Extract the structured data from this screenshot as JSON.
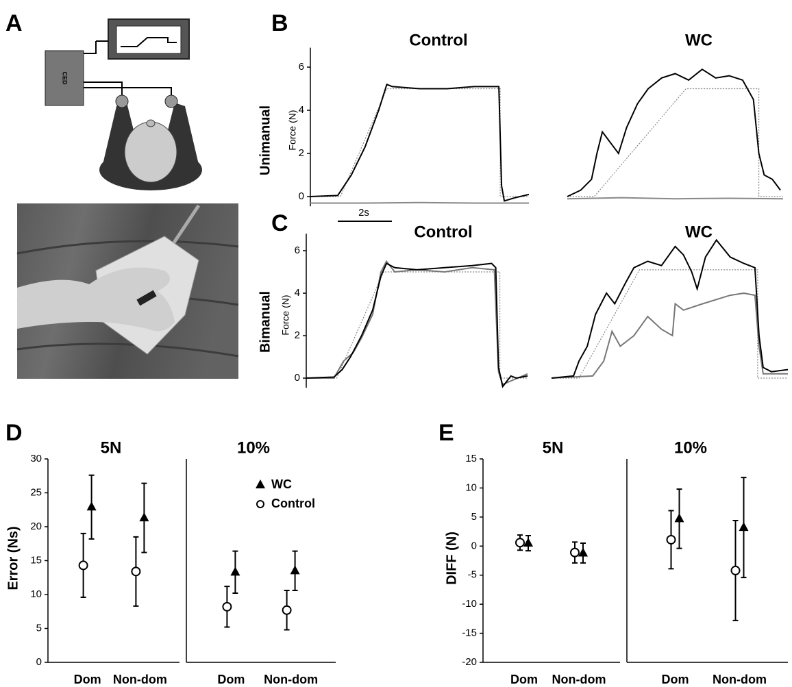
{
  "figure": {
    "panel_labels": [
      "A",
      "B",
      "C",
      "D",
      "E"
    ],
    "row_labels": [
      "Unimanual",
      "Bimanual"
    ],
    "scale_bar": "2s",
    "diagram_label": "CED"
  },
  "chart_data": [
    {
      "type": "line",
      "title": "Control",
      "ylabel": "Force (N)",
      "xlim": [
        0,
        8
      ],
      "ylim": [
        -0.45,
        6.9
      ],
      "yticks": [
        0,
        2,
        4,
        6
      ],
      "series": [
        {
          "color": "#888888",
          "style": "dotted",
          "x": [
            0,
            1.1,
            2.8,
            6.95,
            6.95,
            8
          ],
          "values": [
            0,
            0,
            5,
            5,
            0,
            0
          ]
        },
        {
          "color": "#888888",
          "style": "solid",
          "x": [
            0,
            2,
            4,
            6,
            8
          ],
          "values": [
            -0.3,
            -0.3,
            -0.28,
            -0.3,
            -0.3
          ]
        },
        {
          "color": "#000000",
          "style": "solid",
          "x": [
            0,
            1,
            1.5,
            2,
            2.5,
            2.8,
            3,
            4,
            5,
            6,
            6.9,
            7,
            7.1,
            7.5,
            8
          ],
          "values": [
            0,
            0.05,
            1,
            2.3,
            4,
            5.2,
            5.1,
            5,
            5,
            5.1,
            5.1,
            0.5,
            -0.2,
            -0.05,
            0.1
          ]
        }
      ]
    },
    {
      "type": "line",
      "title": "WC",
      "xlim": [
        0,
        8
      ],
      "ylim": [
        -0.45,
        6.9
      ],
      "series": [
        {
          "color": "#888888",
          "style": "dotted",
          "x": [
            0,
            1,
            4.4,
            7.1,
            7.1,
            8
          ],
          "values": [
            0,
            0,
            5,
            5,
            0,
            0
          ]
        },
        {
          "color": "#888888",
          "style": "solid",
          "x": [
            0,
            2,
            4,
            6,
            8
          ],
          "values": [
            -0.1,
            -0.05,
            -0.1,
            -0.08,
            -0.1
          ]
        },
        {
          "color": "#000000",
          "style": "solid",
          "x": [
            0,
            0.5,
            0.9,
            1.1,
            1.3,
            1.6,
            1.9,
            2.2,
            2.6,
            3,
            3.5,
            4,
            4.5,
            5,
            5.5,
            6,
            6.5,
            6.9,
            7.1,
            7.3,
            7.6,
            7.9
          ],
          "values": [
            0,
            0.3,
            0.8,
            2,
            3,
            2.5,
            2,
            3.2,
            4.3,
            5,
            5.5,
            5.7,
            5.4,
            5.9,
            5.5,
            5.6,
            5.4,
            4.5,
            2,
            1,
            0.8,
            0.3
          ]
        }
      ]
    },
    {
      "type": "line",
      "title": "Control",
      "ylabel": "Force (N)",
      "xlim": [
        0,
        8
      ],
      "ylim": [
        -0.45,
        6.8
      ],
      "yticks": [
        0,
        2,
        4,
        6
      ],
      "series": [
        {
          "color": "#888888",
          "style": "dotted",
          "x": [
            0,
            1.1,
            2.8,
            7,
            7,
            8
          ],
          "values": [
            0,
            0,
            5,
            5,
            0,
            0
          ]
        },
        {
          "color": "#777777",
          "style": "solid",
          "x": [
            0,
            1,
            1.35,
            1.7,
            2,
            2.4,
            2.7,
            2.9,
            3.2,
            4,
            5,
            6,
            6.8,
            6.95,
            7.1,
            8
          ],
          "values": [
            0,
            0,
            0.8,
            1.2,
            1.9,
            3,
            5,
            5.5,
            5,
            5.1,
            5,
            5.2,
            5.1,
            0.3,
            -0.3,
            0.2
          ]
        },
        {
          "color": "#000000",
          "style": "solid",
          "x": [
            0,
            1,
            1.3,
            1.6,
            2,
            2.4,
            2.7,
            2.9,
            3.2,
            4,
            5,
            6,
            6.7,
            6.85,
            6.95,
            7.1,
            7.4,
            7.6,
            8
          ],
          "values": [
            0,
            0.05,
            0.4,
            1,
            2,
            3.2,
            4.8,
            5.4,
            5.2,
            5.1,
            5.2,
            5.3,
            5.4,
            5.2,
            0.5,
            -0.4,
            0.1,
            0,
            0.1
          ]
        }
      ]
    },
    {
      "type": "line",
      "title": "WC",
      "xlim": [
        0,
        8.6
      ],
      "ylim": [
        -0.45,
        6.8
      ],
      "series": [
        {
          "color": "#888888",
          "style": "dotted",
          "x": [
            0,
            1,
            3.2,
            7.5,
            7.5,
            8.6
          ],
          "values": [
            0,
            0,
            5.1,
            5.1,
            0,
            0
          ]
        },
        {
          "color": "#777777",
          "style": "solid",
          "x": [
            0,
            1.5,
            1.9,
            2.2,
            2.5,
            3,
            3.5,
            4,
            4.4,
            4.5,
            4.8,
            5.5,
            6.5,
            7,
            7.4,
            7.55,
            7.7,
            8.6
          ],
          "values": [
            0,
            0.1,
            0.8,
            2.2,
            1.5,
            2,
            2.9,
            2.3,
            2,
            3.5,
            3.2,
            3.5,
            3.9,
            4,
            3.9,
            1.5,
            0.2,
            0.2
          ]
        },
        {
          "color": "#000000",
          "style": "solid",
          "x": [
            0,
            0.8,
            1,
            1.3,
            1.6,
            2,
            2.3,
            2.7,
            3,
            3.5,
            4,
            4.5,
            4.8,
            5.1,
            5.3,
            5.6,
            6,
            6.5,
            7,
            7.4,
            7.55,
            7.7,
            8,
            8.6
          ],
          "values": [
            0,
            0.1,
            0.8,
            1.5,
            3,
            4,
            3.5,
            4.5,
            5.2,
            5.5,
            5.3,
            6.2,
            5.8,
            5,
            4.2,
            5.7,
            6.5,
            5.7,
            5.4,
            5.2,
            2,
            0.5,
            0.3,
            0.4
          ]
        }
      ]
    },
    {
      "type": "errorbar",
      "title": "5N",
      "ylabel": "Error (Ns)",
      "categories": [
        "Dom",
        "Non-dom"
      ],
      "ylim": [
        0,
        30
      ],
      "yticks": [
        0,
        5,
        10,
        15,
        20,
        25,
        30
      ],
      "series": [
        {
          "name": "WC",
          "marker": "triangle",
          "color": "#000000",
          "values": [
            22.9,
            21.3
          ],
          "errors": [
            4.7,
            5.1
          ]
        },
        {
          "name": "Control",
          "marker": "circle",
          "color": "#000000",
          "values": [
            14.3,
            13.4
          ],
          "errors": [
            4.7,
            5.1
          ]
        }
      ]
    },
    {
      "type": "errorbar",
      "title": "10%",
      "categories": [
        "Dom",
        "Non-dom"
      ],
      "ylim": [
        0,
        30
      ],
      "legend": "upper-right",
      "series": [
        {
          "name": "WC",
          "marker": "triangle",
          "color": "#000000",
          "values": [
            13.3,
            13.5
          ],
          "errors": [
            3.1,
            2.9
          ]
        },
        {
          "name": "Control",
          "marker": "circle",
          "color": "#000000",
          "values": [
            8.2,
            7.7
          ],
          "errors": [
            3,
            2.9
          ]
        }
      ]
    },
    {
      "type": "errorbar",
      "title": "5N",
      "ylabel": "DIFF (N)",
      "categories": [
        "Dom",
        "Non-dom"
      ],
      "ylim": [
        -20,
        15
      ],
      "yticks": [
        -20,
        -15,
        -10,
        -5,
        0,
        5,
        10,
        15
      ],
      "series": [
        {
          "name": "WC",
          "marker": "triangle",
          "color": "#000000",
          "values": [
            0.5,
            -1.2
          ],
          "errors": [
            1.3,
            1.7
          ]
        },
        {
          "name": "Control",
          "marker": "circle",
          "color": "#000000",
          "values": [
            0.6,
            -1.1
          ],
          "errors": [
            1.3,
            1.8
          ]
        }
      ]
    },
    {
      "type": "errorbar",
      "title": "10%",
      "categories": [
        "Dom",
        "Non-dom"
      ],
      "ylim": [
        -20,
        15
      ],
      "series": [
        {
          "name": "WC",
          "marker": "triangle",
          "color": "#000000",
          "values": [
            4.7,
            3.2
          ],
          "errors": [
            5.1,
            8.6
          ]
        },
        {
          "name": "Control",
          "marker": "circle",
          "color": "#000000",
          "values": [
            1.1,
            -4.2
          ],
          "errors": [
            5,
            8.6
          ]
        }
      ]
    }
  ]
}
